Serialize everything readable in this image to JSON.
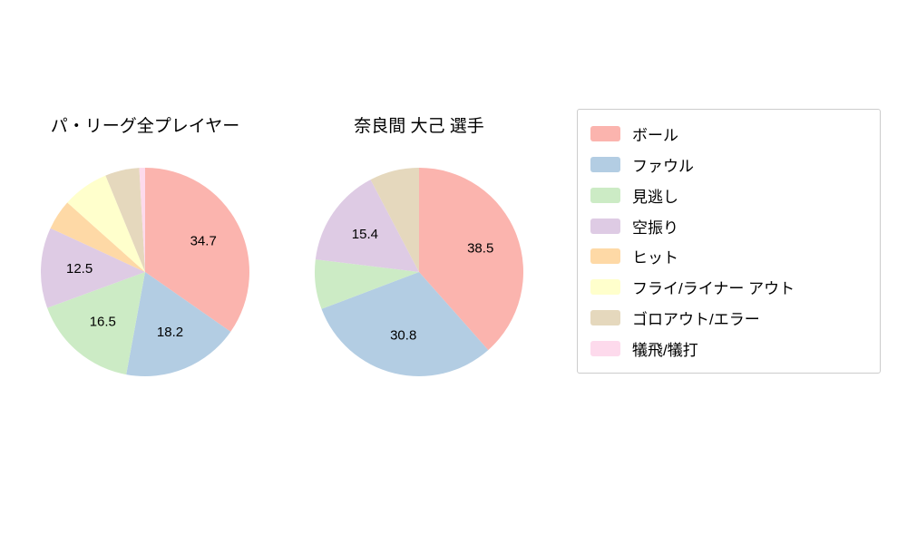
{
  "page": {
    "background": "#ffffff"
  },
  "legend": {
    "position": "right",
    "items": [
      {
        "label": "ボール",
        "color": "#fbb4ae"
      },
      {
        "label": "ファウル",
        "color": "#b3cde3"
      },
      {
        "label": "見逃し",
        "color": "#ccebc5"
      },
      {
        "label": "空振り",
        "color": "#decbe4"
      },
      {
        "label": "ヒット",
        "color": "#fed9a6"
      },
      {
        "label": "フライ/ライナー アウト",
        "color": "#ffffcc"
      },
      {
        "label": "ゴロアウト/エラー",
        "color": "#e5d8bd"
      },
      {
        "label": "犠飛/犠打",
        "color": "#fddaec"
      }
    ]
  },
  "chart_data": [
    {
      "type": "pie",
      "title": "パ・リーグ全プレイヤー",
      "labels": [
        "ボール",
        "ファウル",
        "見逃し",
        "空振り",
        "ヒット",
        "フライ/ライナー アウト",
        "ゴロアウト/エラー",
        "犠飛/犠打"
      ],
      "values": [
        34.7,
        18.2,
        16.5,
        12.5,
        4.7,
        7.2,
        5.3,
        0.9
      ],
      "shown_value_labels": [
        "34.7",
        "18.2",
        "16.5",
        "12.5"
      ],
      "start_angle": "top",
      "direction": "clockwise",
      "label_min_pct": 10,
      "legend_position": "right"
    },
    {
      "type": "pie",
      "title": "奈良間 大己 選手",
      "labels": [
        "ボール",
        "ファウル",
        "見逃し",
        "空振り",
        "ヒット",
        "フライ/ライナー アウト",
        "ゴロアウト/エラー",
        "犠飛/犠打"
      ],
      "values": [
        38.5,
        30.8,
        7.7,
        15.4,
        0,
        0,
        7.7,
        0
      ],
      "shown_value_labels": [
        "38.5",
        "30.8",
        "15.4"
      ],
      "start_angle": "top",
      "direction": "clockwise",
      "label_min_pct": 10,
      "legend_position": "right"
    }
  ]
}
